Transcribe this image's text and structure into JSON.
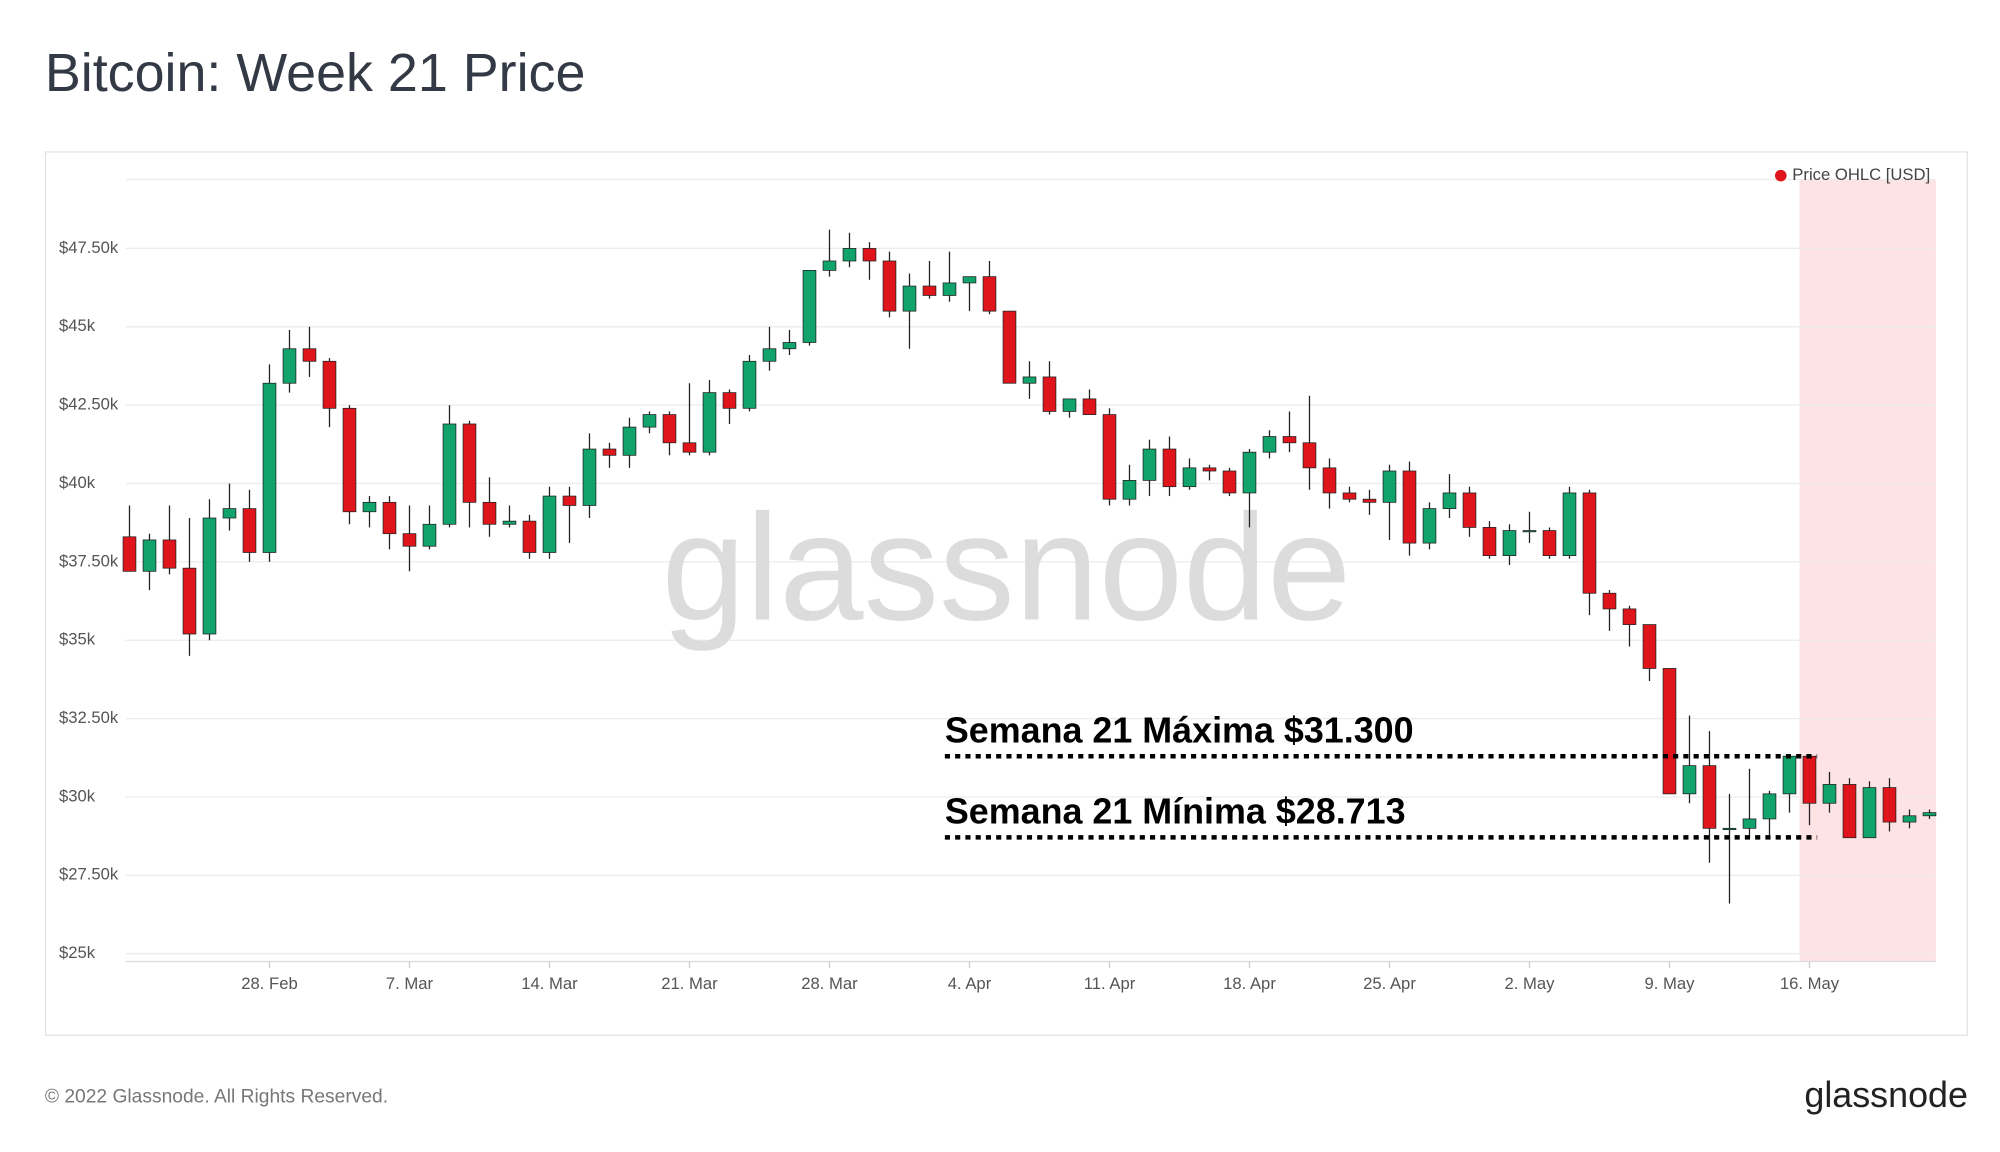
{
  "chart_data": {
    "type": "candlestick",
    "title": "Bitcoin: Week 21 Price",
    "footer": "© 2022 Glassnode. All Rights Reserved.",
    "brand": "glassnode",
    "watermark": "glassnode",
    "categories": [
      null,
      null,
      null,
      null,
      null,
      null,
      null,
      "28. Feb",
      null,
      null,
      null,
      null,
      null,
      null,
      "7. Mar",
      null,
      null,
      null,
      null,
      null,
      null,
      "14. Mar",
      null,
      null,
      null,
      null,
      null,
      null,
      "21. Mar",
      null,
      null,
      null,
      null,
      null,
      null,
      "28. Mar",
      null,
      null,
      null,
      null,
      null,
      null,
      "4. Apr",
      null,
      null,
      null,
      null,
      null,
      null,
      "11. Apr",
      null,
      null,
      null,
      null,
      null,
      null,
      "18. Apr",
      null,
      null,
      null,
      null,
      null,
      null,
      "25. Apr",
      null,
      null,
      null,
      null,
      null,
      null,
      "2. May",
      null,
      null,
      null,
      null,
      null,
      null,
      "9. May",
      null,
      null,
      null,
      null,
      null,
      null,
      "16. May",
      null,
      null,
      null,
      null,
      null,
      null
    ],
    "series": [
      {
        "name": "Price OHLC [USD]",
        "color": "#e0151b",
        "up_color": "#10a36b",
        "down_color": "#e0151b",
        "open": [
          38300,
          37200,
          38200,
          37300,
          35200,
          38900,
          39200,
          37800,
          43200,
          44300,
          43900,
          42400,
          39100,
          39400,
          38400,
          38000,
          38700,
          41900,
          39400,
          38700,
          38800,
          37800,
          39600,
          39300,
          41100,
          40900,
          41800,
          42200,
          41300,
          41000,
          42900,
          42400,
          43900,
          44300,
          44500,
          46800,
          47100,
          47500,
          47100,
          45500,
          46300,
          46000,
          46400,
          46600,
          45500,
          43200,
          43400,
          42300,
          42700,
          42200,
          39500,
          40100,
          41100,
          39900,
          40500,
          40400,
          39700,
          41000,
          41500,
          41300,
          40500,
          39700,
          39500,
          39400,
          40400,
          38100,
          39200,
          39700,
          38600,
          37700,
          38500,
          38500,
          37700,
          39700,
          36500,
          36000,
          35500,
          34100,
          30100,
          31000,
          29000,
          29000,
          29300,
          30100,
          31300,
          29800,
          30400,
          28700,
          30300,
          29200,
          29400
        ],
        "high": [
          39300,
          38400,
          39300,
          38900,
          39500,
          40000,
          39800,
          43800,
          44900,
          45000,
          44000,
          42500,
          39600,
          39600,
          39300,
          39300,
          42500,
          42000,
          40200,
          39300,
          39000,
          39900,
          39900,
          41600,
          41300,
          42100,
          42300,
          42300,
          43200,
          43300,
          43000,
          44100,
          45000,
          44900,
          46800,
          48100,
          48000,
          47700,
          47400,
          46700,
          47100,
          47400,
          46600,
          47100,
          45500,
          43900,
          43900,
          42700,
          43000,
          42400,
          40600,
          41400,
          41500,
          40800,
          40600,
          40500,
          41100,
          41700,
          42300,
          42800,
          40800,
          39900,
          39800,
          40600,
          40700,
          39400,
          40300,
          39900,
          38800,
          38700,
          39100,
          38600,
          39900,
          39800,
          36600,
          36100,
          35500,
          34100,
          32600,
          32100,
          30100,
          30900,
          30200,
          31300,
          31300,
          30800,
          30600,
          30500,
          30600,
          29600,
          29600
        ],
        "low": [
          37200,
          36600,
          37100,
          34500,
          35000,
          38500,
          37500,
          37500,
          42900,
          43400,
          41800,
          38700,
          38600,
          37900,
          37200,
          37900,
          38600,
          38600,
          38300,
          38600,
          37600,
          37600,
          38100,
          38900,
          40500,
          40500,
          41600,
          40900,
          40900,
          40900,
          41900,
          42300,
          43600,
          44100,
          44400,
          46600,
          46900,
          46500,
          45300,
          44300,
          45900,
          45800,
          45500,
          45400,
          43200,
          42700,
          42200,
          42100,
          42300,
          39300,
          39300,
          39600,
          39600,
          39800,
          40100,
          39600,
          38600,
          40800,
          41000,
          39800,
          39200,
          39400,
          39000,
          38200,
          37700,
          37900,
          38900,
          38300,
          37600,
          37400,
          38100,
          37600,
          37600,
          35800,
          35300,
          34800,
          33700,
          30100,
          29800,
          27900,
          26600,
          28700,
          28700,
          29500,
          29100,
          29500,
          28700,
          28700,
          28900,
          29000,
          29300
        ],
        "close": [
          37200,
          38200,
          37300,
          35200,
          38900,
          39200,
          37800,
          43200,
          44300,
          43900,
          42400,
          39100,
          39400,
          38400,
          38000,
          38700,
          41900,
          39400,
          38700,
          38800,
          37800,
          39600,
          39300,
          41100,
          40900,
          41800,
          42200,
          41300,
          41000,
          42900,
          42400,
          43900,
          44300,
          44500,
          46800,
          47100,
          47500,
          47100,
          45500,
          46300,
          46000,
          46400,
          46600,
          45500,
          43200,
          43400,
          42300,
          42700,
          42200,
          39500,
          40100,
          41100,
          39900,
          40500,
          40400,
          39700,
          41000,
          41500,
          41300,
          40500,
          39700,
          39500,
          39400,
          40400,
          38100,
          39200,
          39700,
          38600,
          37700,
          38500,
          38500,
          37700,
          39700,
          36500,
          36000,
          35500,
          34100,
          30100,
          31000,
          29000,
          29000,
          29300,
          30100,
          31300,
          29800,
          30400,
          28700,
          30300,
          29200,
          29400,
          29500
        ]
      }
    ],
    "highlight_from": "16. May",
    "highlight_color": "#fde3e4",
    "annotations": [
      {
        "label": "Semana 21 Máxima $31.300",
        "value": 31300
      },
      {
        "label": "Semana 21 Mínima $28.713",
        "value": 28713
      }
    ],
    "ylim": [
      24750,
      49700
    ],
    "yticks": [
      {
        "value": 25000,
        "label": "$25k"
      },
      {
        "value": 27500,
        "label": "$27.50k"
      },
      {
        "value": 30000,
        "label": "$30k"
      },
      {
        "value": 32500,
        "label": "$32.50k"
      },
      {
        "value": 35000,
        "label": "$35k"
      },
      {
        "value": 37500,
        "label": "$37.50k"
      },
      {
        "value": 40000,
        "label": "$40k"
      },
      {
        "value": 42500,
        "label": "$42.50k"
      },
      {
        "value": 45000,
        "label": "$45k"
      },
      {
        "value": 47500,
        "label": "$47.50k"
      }
    ],
    "grid": true,
    "legend": "top-right"
  }
}
